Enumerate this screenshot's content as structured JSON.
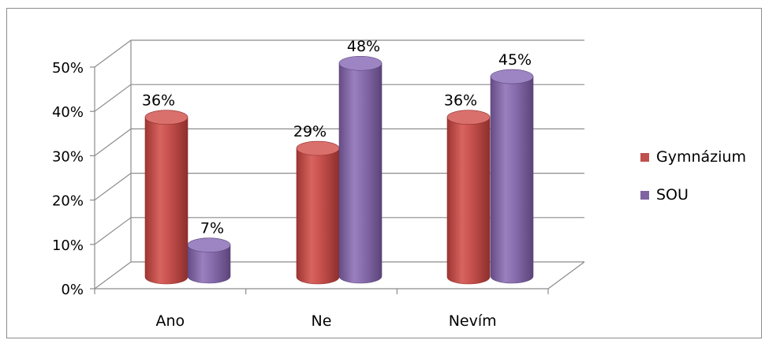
{
  "chart_data": {
    "type": "bar",
    "style": "3d-cylinder",
    "title": "",
    "xlabel": "",
    "ylabel": "",
    "categories": [
      "Ano",
      "Ne",
      "Nevím"
    ],
    "series": [
      {
        "name": "Gymnázium",
        "color": "#c0504d",
        "values": [
          36,
          29,
          36
        ],
        "labels": [
          "36%",
          "29%",
          "36%"
        ]
      },
      {
        "name": "SOU",
        "color": "#8064a2",
        "values": [
          7,
          48,
          45
        ],
        "labels": [
          "7%",
          "48%",
          "45%"
        ]
      }
    ],
    "ylim": [
      0,
      50
    ],
    "yticks": [
      0,
      10,
      20,
      30,
      40,
      50
    ],
    "ytick_labels": [
      "0%",
      "10%",
      "20%",
      "30%",
      "40%",
      "50%"
    ],
    "grid": true,
    "legend": "right"
  }
}
